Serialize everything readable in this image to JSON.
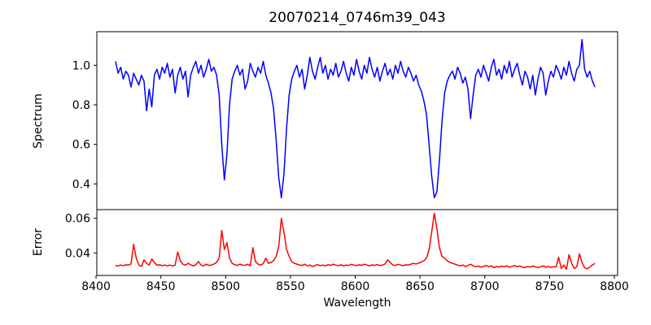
{
  "figure": {
    "title": "20070214_0746m39_043",
    "xlabel": "Wavelength",
    "ylabel_top": "Spectrum",
    "ylabel_bottom": "Error",
    "background_color": "#ffffff",
    "spine_color": "#000000",
    "text_color": "#000000"
  },
  "chart_data": [
    {
      "type": "line",
      "name": "spectrum",
      "title": "20070214_0746m39_043",
      "ylabel": "Spectrum",
      "color": "#0000ff",
      "xlim": [
        8400.6,
        8802.5
      ],
      "ylim": [
        0.27,
        1.17
      ],
      "yticks": [
        1.0,
        0.8,
        0.6,
        0.4
      ],
      "ytick_labels": [
        "1.0",
        "0.8",
        "0.6",
        "0.4"
      ],
      "xticks": [],
      "xtick_labels": [],
      "grid": false,
      "legend": null,
      "x_start": 8415,
      "x_step": 2,
      "values": [
        1.02,
        0.96,
        0.99,
        0.93,
        0.97,
        0.95,
        0.89,
        0.96,
        0.93,
        0.9,
        0.95,
        0.92,
        0.77,
        0.88,
        0.79,
        0.95,
        0.98,
        0.93,
        0.99,
        0.96,
        1.01,
        0.94,
        0.98,
        0.86,
        0.95,
        0.99,
        0.93,
        0.97,
        0.84,
        0.95,
        0.99,
        1.02,
        0.96,
        1.0,
        0.94,
        0.98,
        1.03,
        0.97,
        0.99,
        0.95,
        0.85,
        0.6,
        0.42,
        0.55,
        0.8,
        0.93,
        0.97,
        1.0,
        0.95,
        0.98,
        0.88,
        0.92,
        1.01,
        0.97,
        0.94,
        0.99,
        0.96,
        1.02,
        0.95,
        0.91,
        0.86,
        0.78,
        0.62,
        0.43,
        0.33,
        0.45,
        0.68,
        0.85,
        0.93,
        0.97,
        1.0,
        0.94,
        0.98,
        0.88,
        0.95,
        1.04,
        0.97,
        0.93,
        0.99,
        1.04,
        0.96,
        1.0,
        0.93,
        0.98,
        0.95,
        1.01,
        0.94,
        0.97,
        1.02,
        0.96,
        0.92,
        0.99,
        0.95,
        1.03,
        0.97,
        0.93,
        1.0,
        0.96,
        1.04,
        0.98,
        0.94,
        0.99,
        0.92,
        0.97,
        1.01,
        0.95,
        0.98,
        0.93,
        1.0,
        0.96,
        1.02,
        0.97,
        0.94,
        0.99,
        0.96,
        0.92,
        0.95,
        0.9,
        0.87,
        0.82,
        0.75,
        0.6,
        0.44,
        0.33,
        0.36,
        0.52,
        0.72,
        0.86,
        0.92,
        0.95,
        0.97,
        0.93,
        0.99,
        0.96,
        0.91,
        0.94,
        0.88,
        0.73,
        0.85,
        0.95,
        0.98,
        0.94,
        1.0,
        0.96,
        0.92,
        0.99,
        1.03,
        0.95,
        0.98,
        0.93,
        1.0,
        0.96,
        1.02,
        0.94,
        0.98,
        1.01,
        0.95,
        0.9,
        0.97,
        0.94,
        0.88,
        0.95,
        0.85,
        0.93,
        0.99,
        0.96,
        0.85,
        0.92,
        0.97,
        0.94,
        1.0,
        0.97,
        0.93,
        0.99,
        0.95,
        1.02,
        0.96,
        0.92,
        0.98,
        1.0,
        1.13,
        0.98,
        0.94,
        0.97,
        0.92,
        0.89
      ]
    },
    {
      "type": "line",
      "name": "error",
      "xlabel": "Wavelength",
      "ylabel": "Error",
      "color": "#ff0000",
      "xlim": [
        8400.6,
        8802.5
      ],
      "ylim": [
        0.027,
        0.065
      ],
      "yticks": [
        0.06,
        0.04
      ],
      "ytick_labels": [
        "0.06",
        "0.04"
      ],
      "xticks": [
        8400,
        8450,
        8500,
        8550,
        8600,
        8650,
        8700,
        8750,
        8800
      ],
      "xtick_labels": [
        "8400",
        "8450",
        "8500",
        "8550",
        "8600",
        "8650",
        "8700",
        "8750",
        "8800"
      ],
      "grid": false,
      "legend": null,
      "x_start": 8415,
      "x_step": 2,
      "values": [
        0.0328,
        0.0324,
        0.033,
        0.0326,
        0.0332,
        0.033,
        0.0336,
        0.045,
        0.037,
        0.033,
        0.0322,
        0.036,
        0.034,
        0.033,
        0.0365,
        0.0345,
        0.0328,
        0.0332,
        0.0326,
        0.033,
        0.0325,
        0.033,
        0.0324,
        0.033,
        0.0405,
        0.0355,
        0.0335,
        0.033,
        0.034,
        0.0332,
        0.0325,
        0.0332,
        0.035,
        0.033,
        0.0325,
        0.0335,
        0.0328,
        0.033,
        0.0336,
        0.0345,
        0.037,
        0.053,
        0.042,
        0.046,
        0.037,
        0.034,
        0.0332,
        0.0328,
        0.0335,
        0.033,
        0.0328,
        0.0335,
        0.0325,
        0.043,
        0.035,
        0.0335,
        0.033,
        0.0338,
        0.037,
        0.034,
        0.0345,
        0.0355,
        0.038,
        0.044,
        0.06,
        0.052,
        0.042,
        0.038,
        0.035,
        0.034,
        0.0335,
        0.033,
        0.0328,
        0.0335,
        0.0325,
        0.033,
        0.0322,
        0.0328,
        0.0332,
        0.0326,
        0.033,
        0.0325,
        0.0332,
        0.0328,
        0.0335,
        0.033,
        0.0326,
        0.0332,
        0.0325,
        0.033,
        0.0328,
        0.0334,
        0.033,
        0.0326,
        0.0332,
        0.0328,
        0.0335,
        0.033,
        0.0325,
        0.0331,
        0.0328,
        0.0333,
        0.0327,
        0.033,
        0.0336,
        0.036,
        0.0345,
        0.033,
        0.0328,
        0.0334,
        0.033,
        0.0326,
        0.0332,
        0.033,
        0.0335,
        0.034,
        0.0336,
        0.0342,
        0.0348,
        0.0355,
        0.037,
        0.042,
        0.052,
        0.063,
        0.054,
        0.043,
        0.038,
        0.037,
        0.0355,
        0.0345,
        0.034,
        0.0335,
        0.033,
        0.0325,
        0.033,
        0.0322,
        0.0328,
        0.0335,
        0.0325,
        0.032,
        0.0325,
        0.0318,
        0.0322,
        0.0328,
        0.032,
        0.0325,
        0.0315,
        0.0322,
        0.0318,
        0.0324,
        0.032,
        0.0326,
        0.0318,
        0.0322,
        0.0328,
        0.032,
        0.0325,
        0.0318,
        0.0315,
        0.0322,
        0.0318,
        0.0324,
        0.032,
        0.0315,
        0.032,
        0.0325,
        0.0318,
        0.0322,
        0.0316,
        0.032,
        0.032,
        0.0375,
        0.031,
        0.033,
        0.0305,
        0.039,
        0.034,
        0.031,
        0.032,
        0.0395,
        0.0345,
        0.0315,
        0.0308,
        0.0318,
        0.033,
        0.034
      ]
    }
  ]
}
